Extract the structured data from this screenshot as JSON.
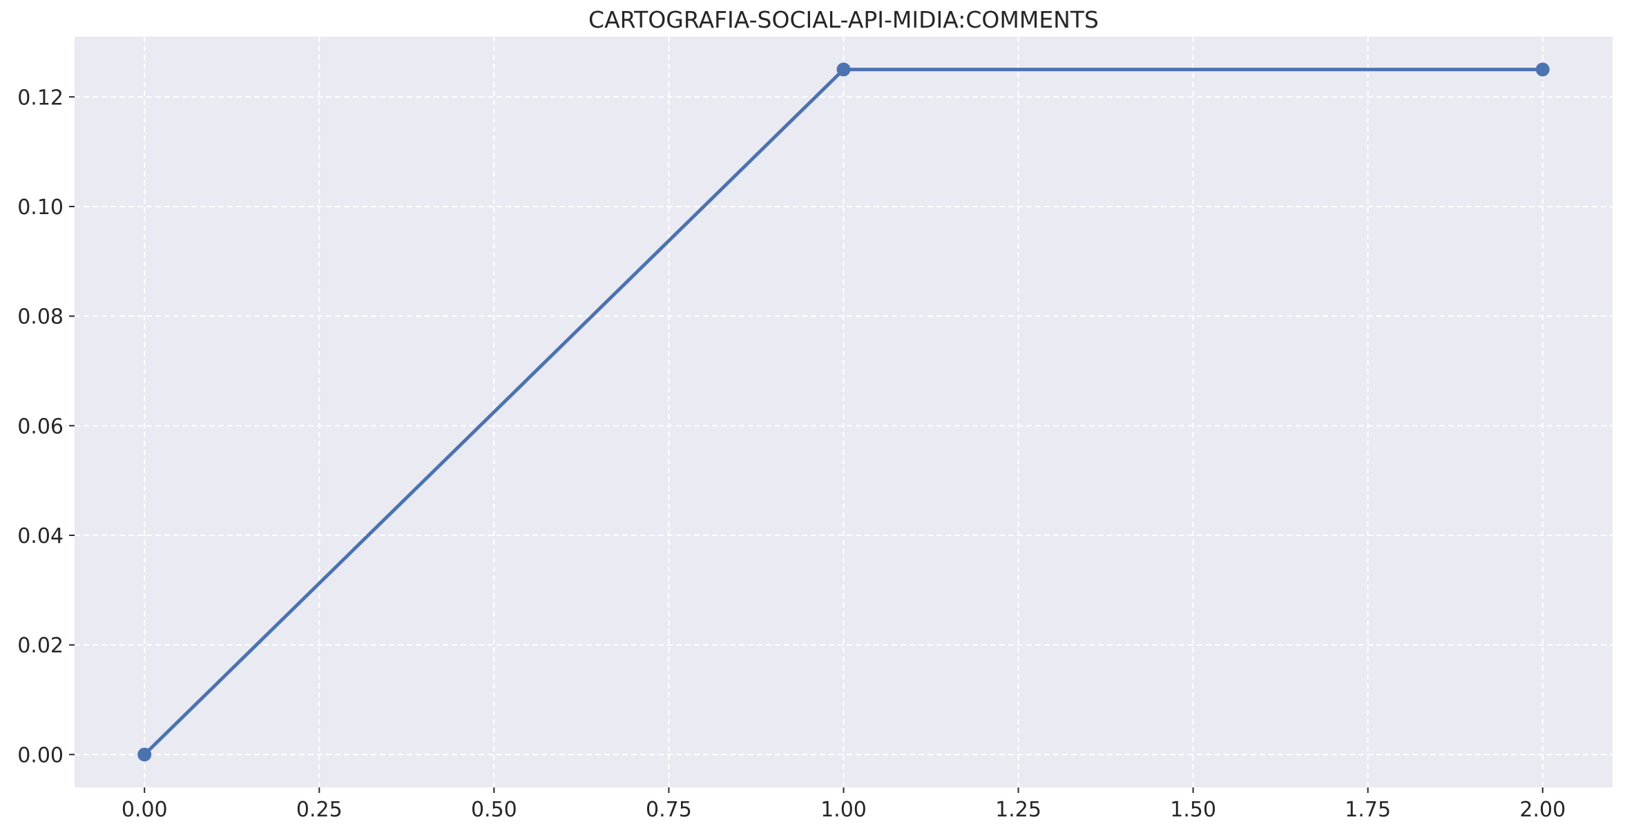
{
  "chart_data": {
    "type": "line",
    "title": "CARTOGRAFIA-SOCIAL-API-MIDIA:COMMENTS",
    "xlabel": "",
    "ylabel": "",
    "xlim": [
      -0.1,
      2.1
    ],
    "ylim": [
      -0.006,
      0.131
    ],
    "x_ticks": [
      0.0,
      0.25,
      0.5,
      0.75,
      1.0,
      1.25,
      1.5,
      1.75,
      2.0
    ],
    "x_tick_labels": [
      "0.00",
      "0.25",
      "0.50",
      "0.75",
      "1.00",
      "1.25",
      "1.50",
      "1.75",
      "2.00"
    ],
    "y_ticks": [
      0.0,
      0.02,
      0.04,
      0.06,
      0.08,
      0.1,
      0.12
    ],
    "y_tick_labels": [
      "0.00",
      "0.02",
      "0.04",
      "0.06",
      "0.08",
      "0.10",
      "0.12"
    ],
    "grid": true,
    "grid_style": "dashed",
    "series": [
      {
        "x": [
          0,
          1,
          2
        ],
        "values": [
          0.0,
          0.125,
          0.125
        ],
        "color": "#4c72b0",
        "marker": "circle"
      }
    ],
    "background_color": "#eaeaf2",
    "grid_color": "#ffffff",
    "text_color": "#262626"
  }
}
